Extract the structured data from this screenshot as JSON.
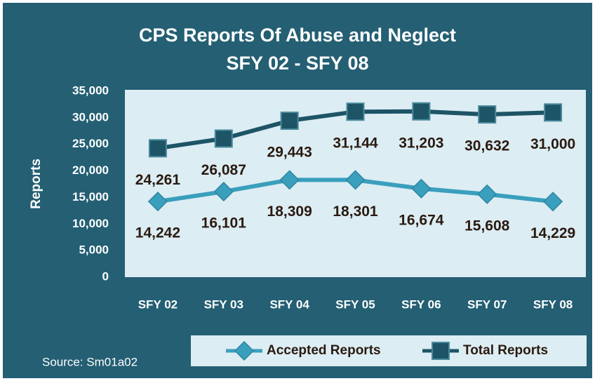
{
  "chart_data": {
    "type": "line",
    "title": "CPS Reports Of Abuse and Neglect",
    "subtitle": "SFY 02 - SFY 08",
    "y_label": "Reports",
    "source": "Source: Sm01a02",
    "categories": [
      "SFY 02",
      "SFY 03",
      "SFY 04",
      "SFY 05",
      "SFY 06",
      "SFY 07",
      "SFY 08"
    ],
    "series": [
      {
        "name": "Accepted Reports",
        "color": "#3a9fbd",
        "marker": "diamond",
        "values": [
          14242,
          16101,
          18309,
          18301,
          16674,
          15608,
          14229
        ],
        "value_labels": [
          "14,242",
          "16,101",
          "18,309",
          "18,301",
          "16,674",
          "15,608",
          "14,229"
        ]
      },
      {
        "name": "Total Reports",
        "color": "#1d5466",
        "marker": "square",
        "values": [
          24261,
          26087,
          29443,
          31144,
          31203,
          30632,
          31000
        ],
        "value_labels": [
          "24,261",
          "26,087",
          "29,443",
          "31,144",
          "31,203",
          "30,632",
          "31,000"
        ]
      }
    ],
    "ylim": [
      0,
      35000
    ],
    "yticks": [
      0,
      {
        "value": 5000,
        "label": "5,000"
      },
      {
        "value": 10000,
        "label": "10,000"
      },
      {
        "value": 15000,
        "label": "15,000"
      },
      {
        "value": 20000,
        "label": "20,000"
      },
      {
        "value": 25000,
        "label": "25,000"
      },
      {
        "value": 30000,
        "label": "30,000"
      },
      {
        "value": 35000,
        "label": "35,000"
      }
    ],
    "legend": "bottom"
  }
}
